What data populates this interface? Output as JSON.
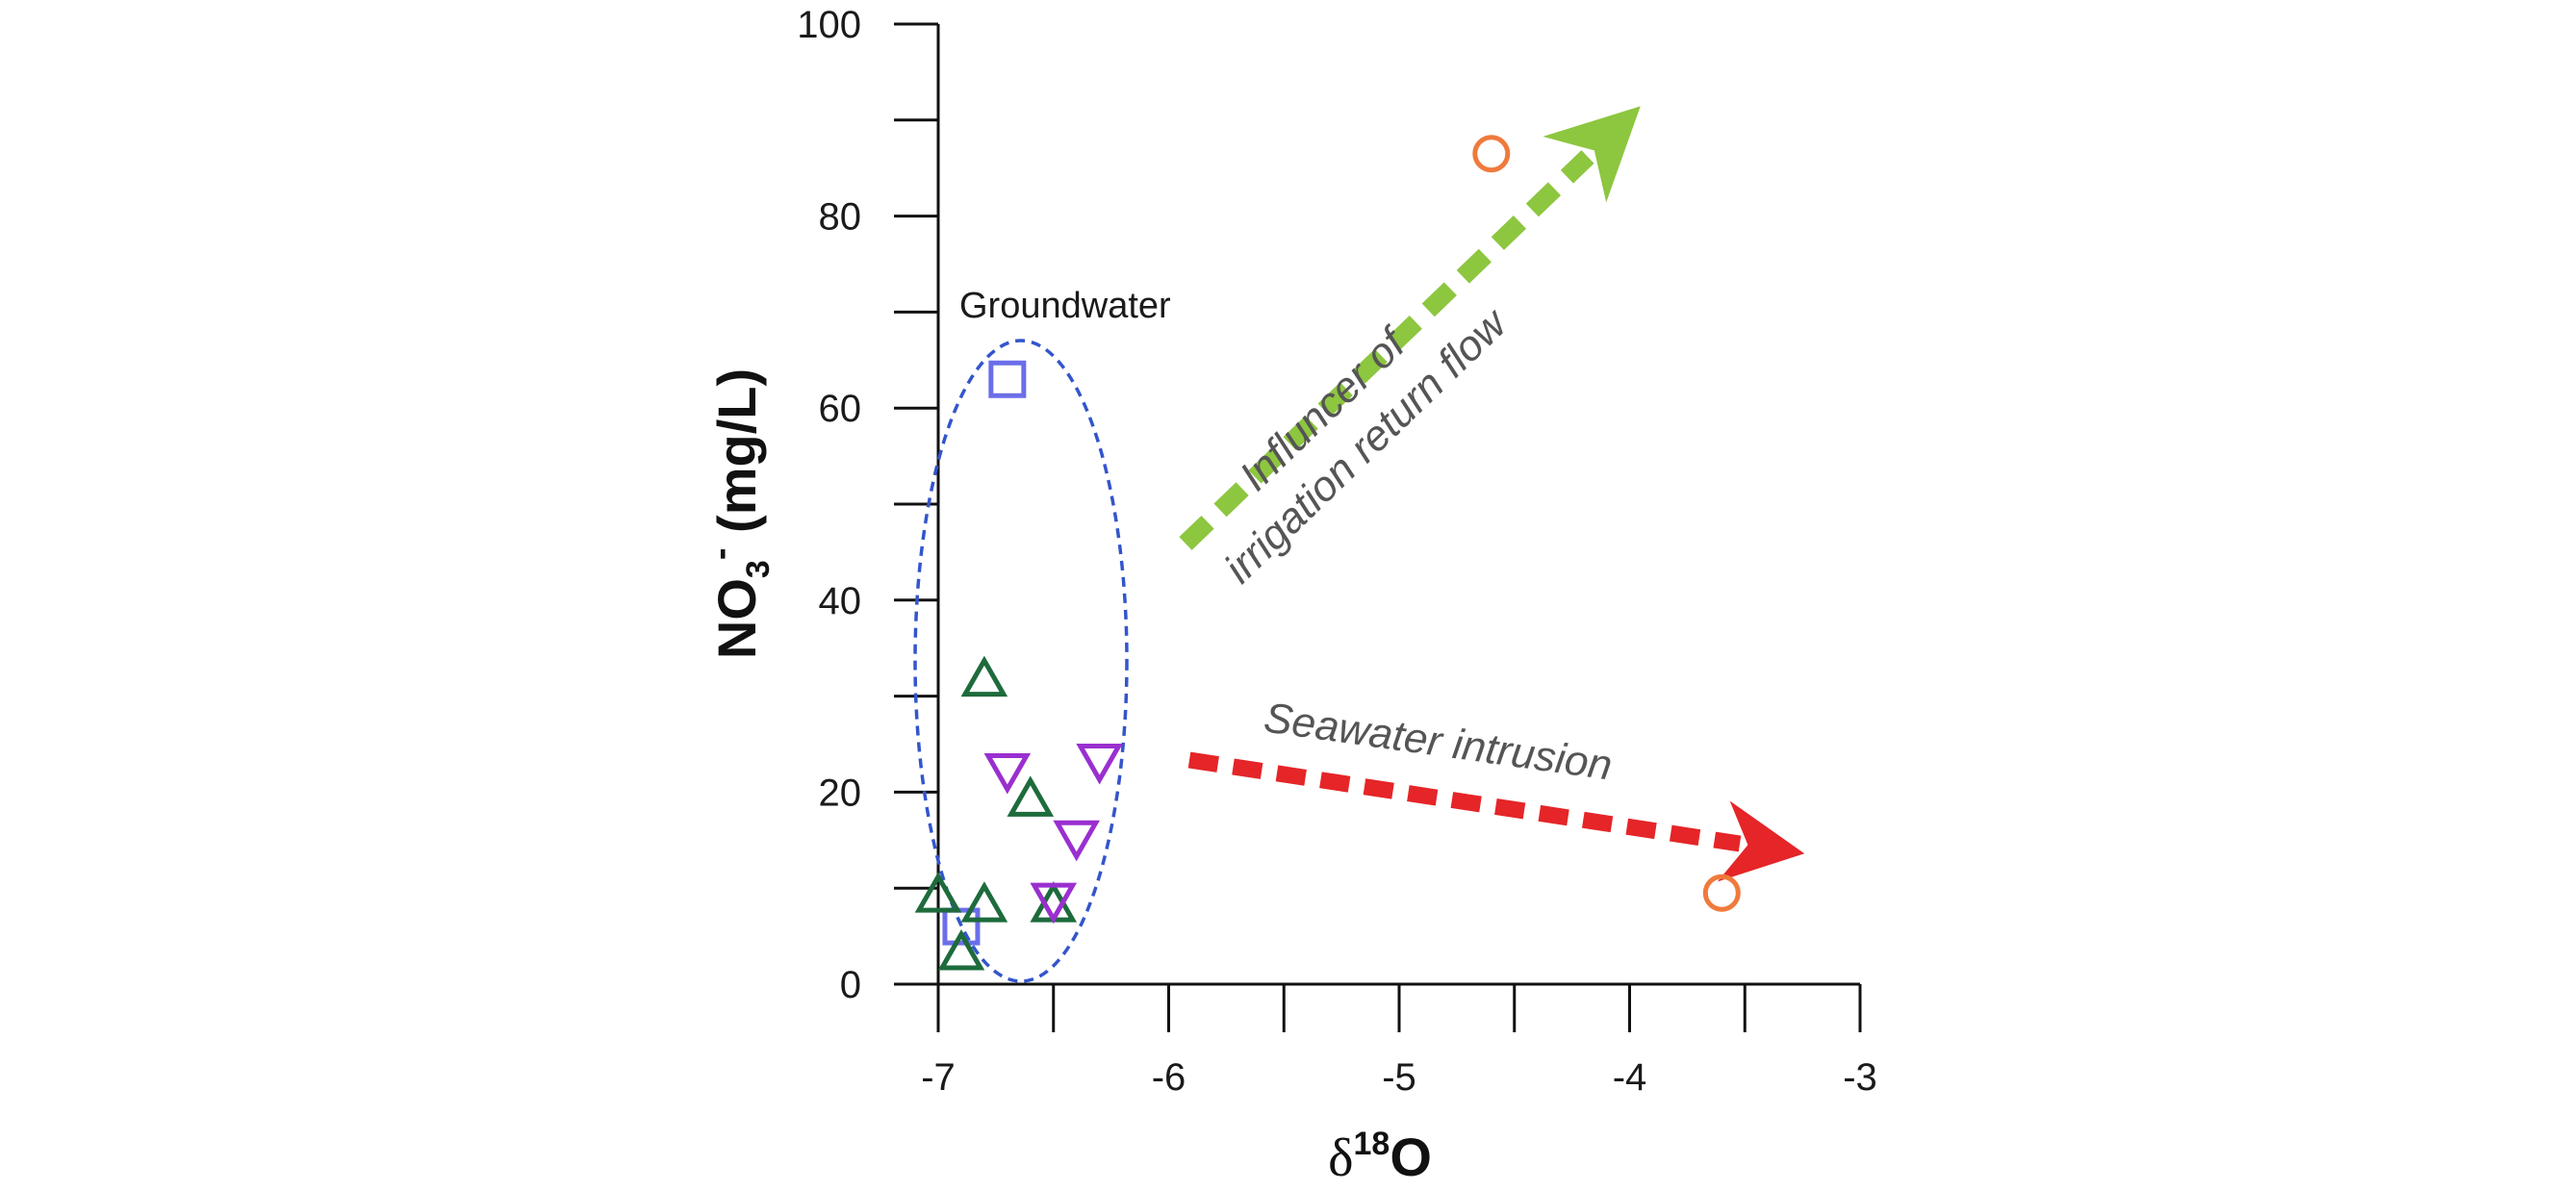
{
  "chart_data": {
    "type": "scatter",
    "xlabel": "δ18O",
    "xlabel_main": "δ",
    "xlabel_sup": "18",
    "xlabel_tail": "O",
    "ylabel": "NO3- (mg/L)",
    "ylabel_main": "NO",
    "ylabel_sub": "3",
    "ylabel_sup": "-",
    "ylabel_tail": " (mg/L)",
    "xlim": [
      -7,
      -3
    ],
    "ylim": [
      0,
      100
    ],
    "x_ticks": [
      "-7",
      "-6",
      "-5",
      "-4",
      "-3"
    ],
    "x_tick_values": [
      -7,
      -6,
      -5,
      -4,
      -3
    ],
    "y_ticks": [
      "0",
      "20",
      "40",
      "60",
      "80",
      "100"
    ],
    "y_tick_values": [
      0,
      20,
      40,
      60,
      80,
      100
    ],
    "grid": false,
    "series": [
      {
        "marker": "square",
        "color": "#6b6ee8",
        "points": [
          [
            -6.7,
            63
          ],
          [
            -6.9,
            6
          ]
        ]
      },
      {
        "marker": "triangle-up",
        "color": "#1e6b3c",
        "points": [
          [
            -6.8,
            31.5
          ],
          [
            -6.6,
            19
          ],
          [
            -7.0,
            9
          ],
          [
            -6.8,
            8
          ],
          [
            -6.5,
            8
          ],
          [
            -6.9,
            3
          ]
        ]
      },
      {
        "marker": "triangle-down",
        "color": "#9a2fd0",
        "points": [
          [
            -6.7,
            22.5
          ],
          [
            -6.3,
            23.5
          ],
          [
            -6.4,
            15.5
          ],
          [
            -6.5,
            9
          ]
        ]
      },
      {
        "marker": "circle",
        "color": "#f07a3c",
        "points": [
          [
            -4.6,
            86.5
          ],
          [
            -3.6,
            9.5
          ]
        ]
      }
    ],
    "annotations": {
      "groundwater_label": "Groundwater",
      "irrigation_line1": "Influncer of",
      "irrigation_line2": "irrigation return flow",
      "seawater_label": "Seawater intrusion"
    },
    "ellipse_color": "#3355cc",
    "irrigation_arrow_color": "#8dc63f",
    "seawater_arrow_color": "#e52528"
  }
}
